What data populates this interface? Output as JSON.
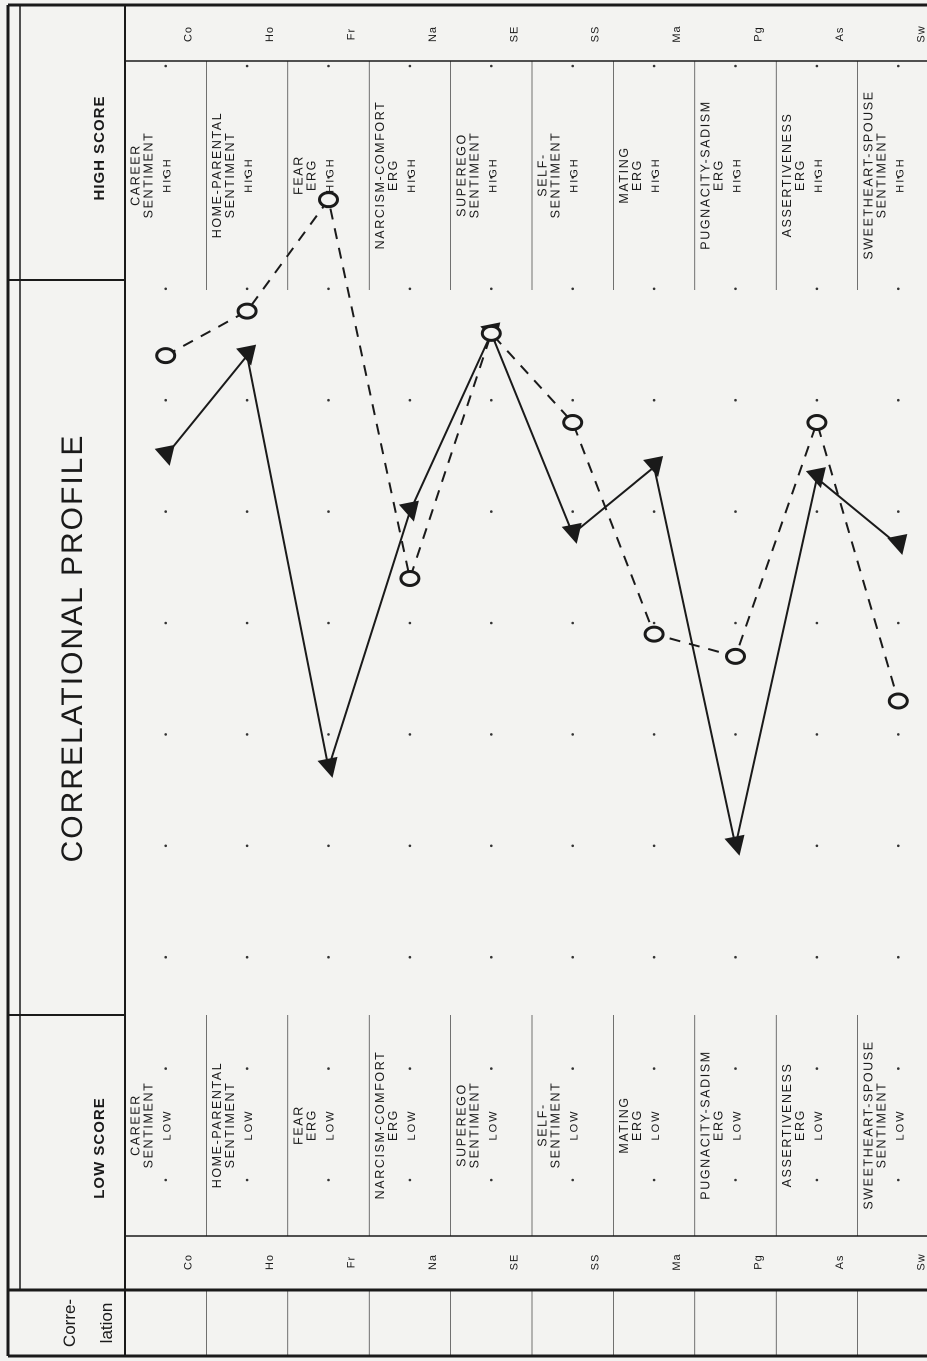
{
  "headers": {
    "correlation": [
      "Corre-",
      "lation"
    ],
    "low_score": "LOW SCORE",
    "high_score": "HIGH SCORE",
    "title": "CORRELATIONAL PROFILE"
  },
  "rows": [
    {
      "code": "Co",
      "name": [
        "CAREER",
        "SENTIMENT"
      ],
      "low": "LOW",
      "high": "HIGH"
    },
    {
      "code": "Ho",
      "name": [
        "HOME-PARENTAL",
        "SENTIMENT"
      ],
      "low": "LOW",
      "high": "HIGH"
    },
    {
      "code": "Fr",
      "name": [
        "FEAR",
        "ERG"
      ],
      "low": "LOW",
      "high": "HIGH"
    },
    {
      "code": "Na",
      "name": [
        "NARCISM-COMFORT",
        "ERG"
      ],
      "low": "LOW",
      "high": "HIGH"
    },
    {
      "code": "SE",
      "name": [
        "SUPEREGO",
        "SENTIMENT"
      ],
      "low": "LOW",
      "high": "HIGH"
    },
    {
      "code": "SS",
      "name": [
        "SELF-",
        "SENTIMENT"
      ],
      "low": "LOW",
      "high": "HIGH"
    },
    {
      "code": "Ma",
      "name": [
        "MATING",
        "ERG"
      ],
      "low": "LOW",
      "high": "HIGH"
    },
    {
      "code": "Pg",
      "name": [
        "PUGNACITY-SADISM",
        "ERG"
      ],
      "low": "LOW",
      "high": "HIGH"
    },
    {
      "code": "As",
      "name": [
        "ASSERTIVENESS",
        "ERG"
      ],
      "low": "LOW",
      "high": "HIGH"
    },
    {
      "code": "Sw",
      "name": [
        "SWEETHEART-SPOUSE",
        "SENTIMENT"
      ],
      "low": "LOW",
      "high": "HIGH"
    }
  ],
  "chart_data": {
    "type": "line",
    "title": "CORRELATIONAL PROFILE",
    "orientation": "rotated-90-ccw",
    "categories": [
      "Co",
      "Ho",
      "Fr",
      "Na",
      "SE",
      "SS",
      "Ma",
      "Pg",
      "As",
      "Sw"
    ],
    "xlim": [
      0,
      10
    ],
    "x_direction": "low score to high score",
    "grid": "dotted",
    "legend": "none",
    "series": [
      {
        "marker": "triangle",
        "line": "solid",
        "color": "#1a1a1a",
        "values": [
          6.5,
          7.4,
          3.7,
          6.0,
          7.6,
          5.8,
          6.4,
          3.0,
          6.3,
          5.7
        ]
      },
      {
        "marker": "circle",
        "line": "dashed",
        "color": "#1a1a1a",
        "values": [
          7.4,
          7.8,
          8.8,
          5.4,
          7.6,
          6.8,
          4.9,
          4.7,
          6.8,
          4.3
        ]
      }
    ]
  }
}
